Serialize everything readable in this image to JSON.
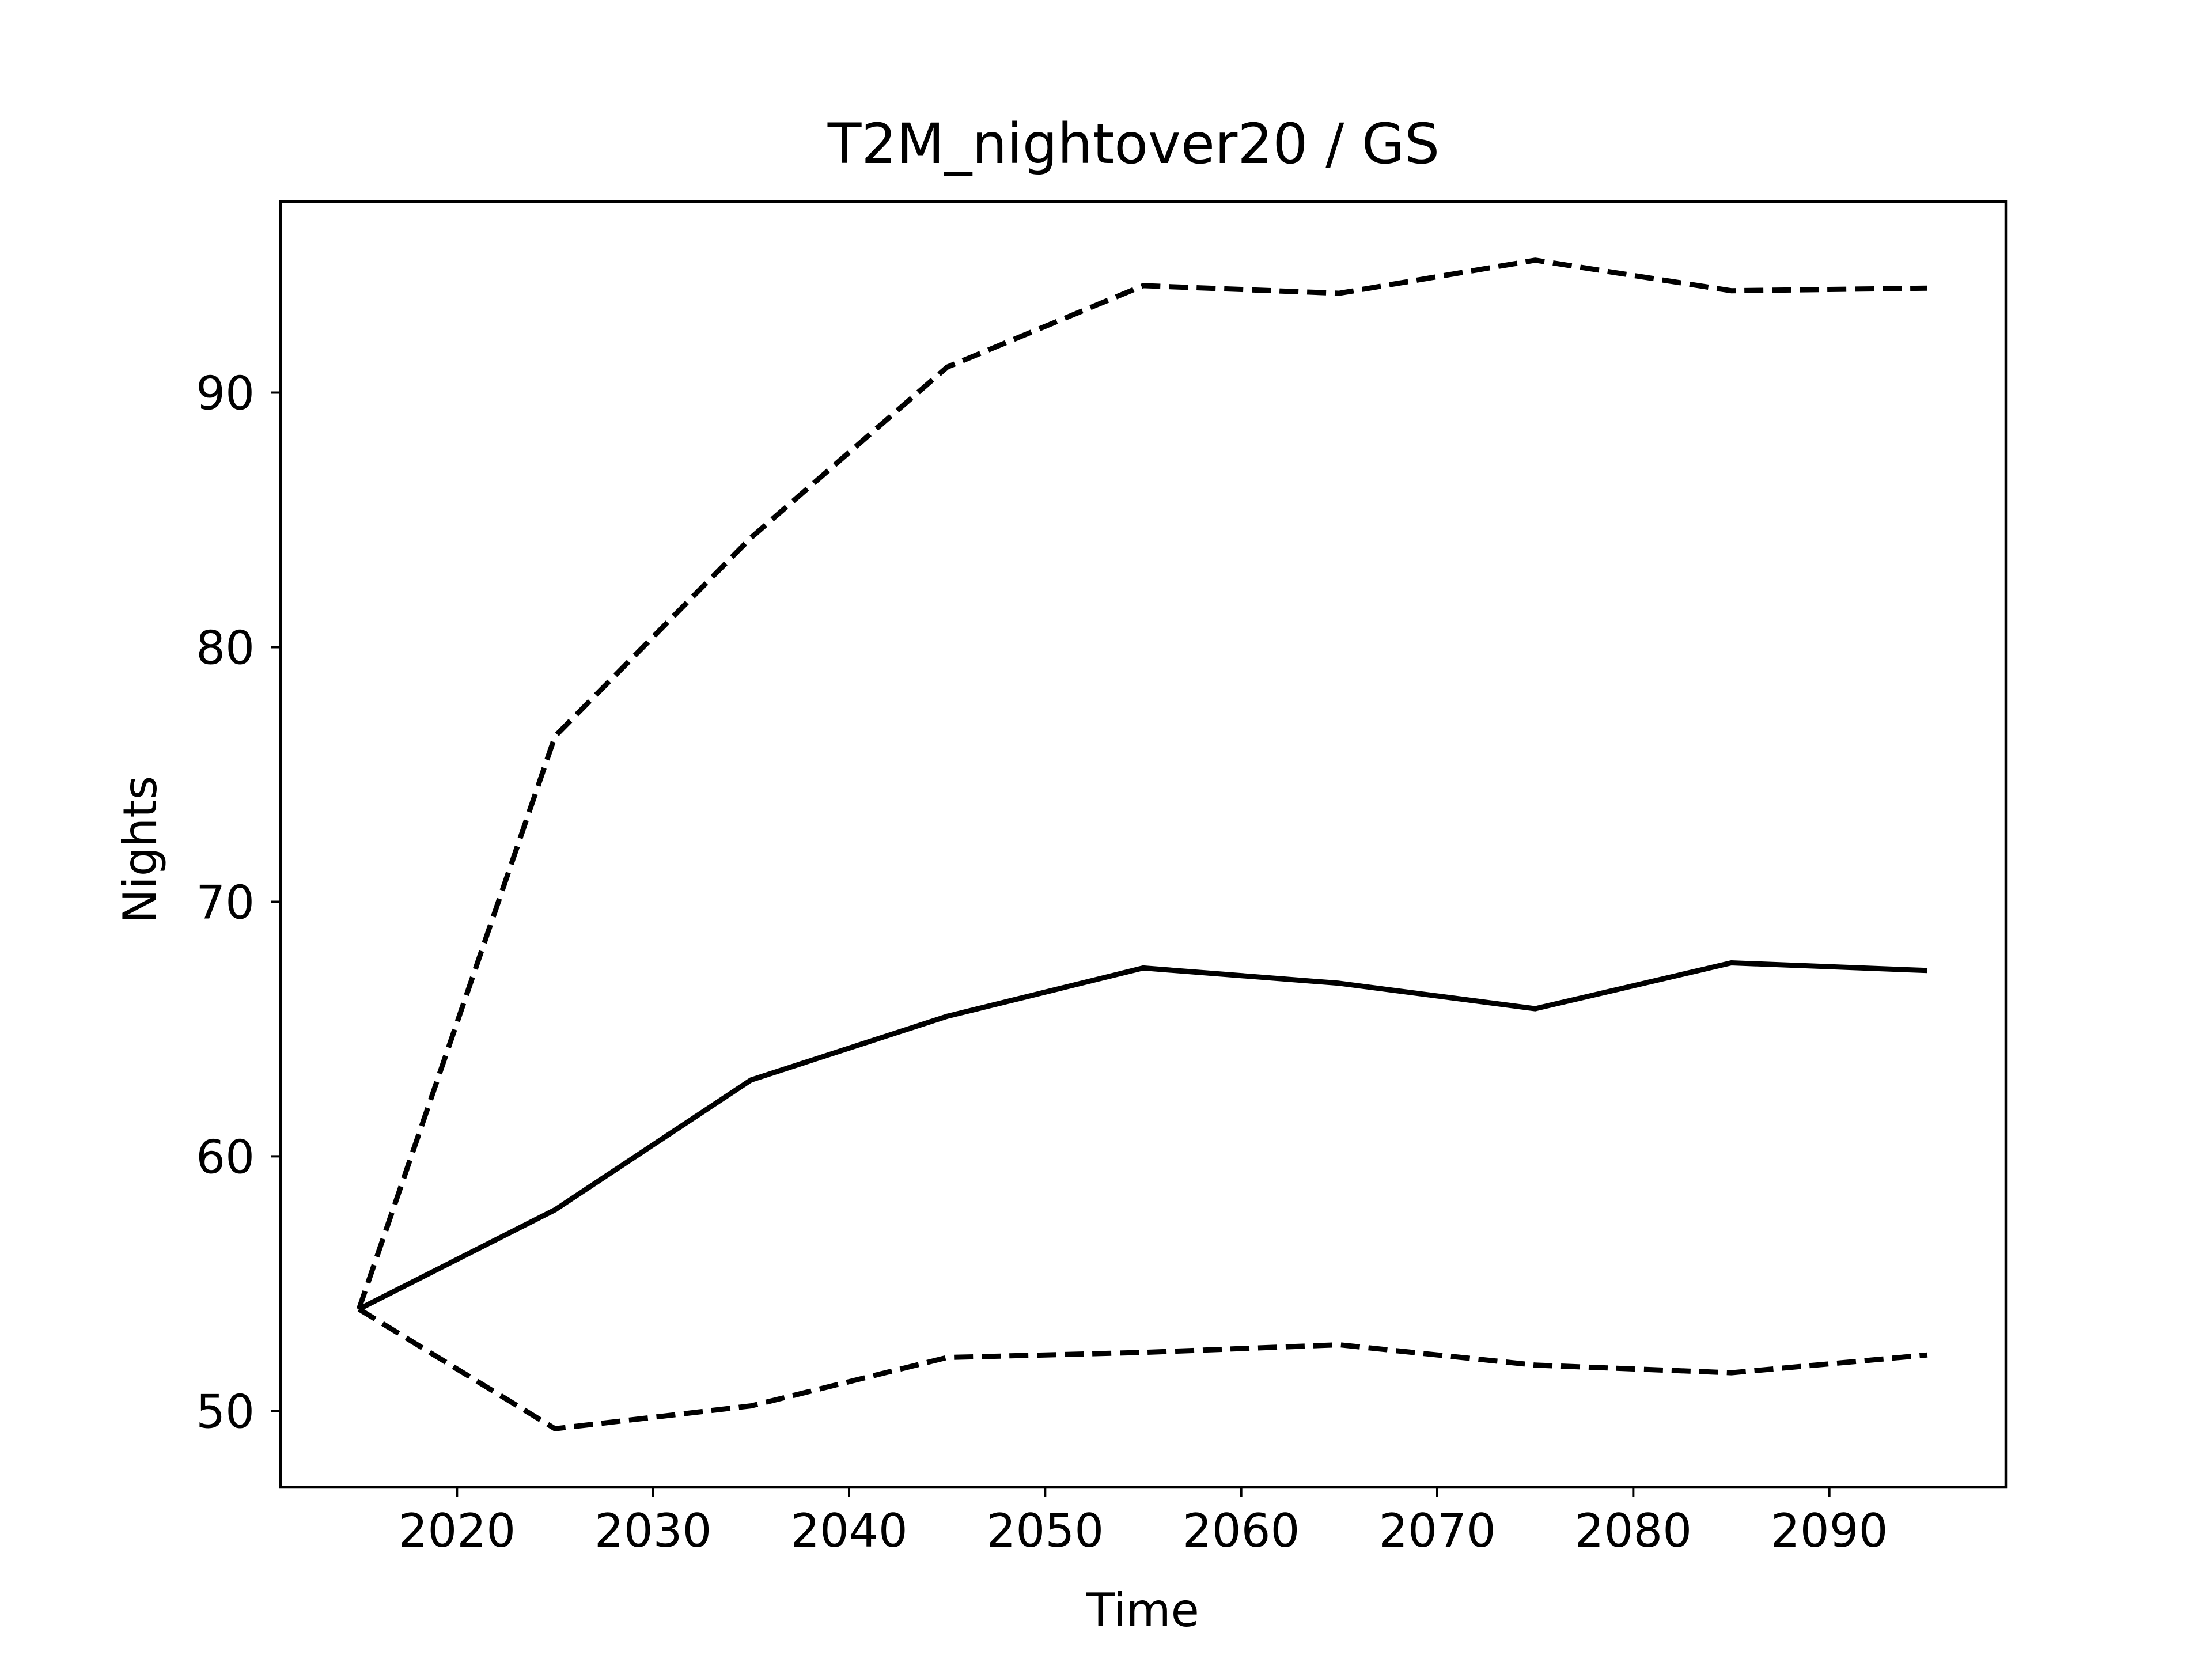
{
  "chart_data": {
    "type": "line",
    "title": "T2M_nightover20 / GS",
    "xlabel": "Time",
    "ylabel": "Nights",
    "xlim": [
      2011,
      2099
    ],
    "ylim": [
      47,
      97.5
    ],
    "x_ticks": [
      2020,
      2030,
      2040,
      2050,
      2060,
      2070,
      2080,
      2090
    ],
    "y_ticks": [
      50,
      60,
      70,
      80,
      90
    ],
    "grid": false,
    "legend": "none",
    "x": [
      2015,
      2025,
      2035,
      2045,
      2055,
      2065,
      2075,
      2085,
      2095
    ],
    "series": [
      {
        "style": "solid",
        "color": "#000000",
        "values": [
          54.0,
          57.9,
          63.0,
          65.5,
          67.4,
          66.8,
          65.8,
          67.6,
          67.3
        ]
      },
      {
        "style": "dashed",
        "color": "#000000",
        "values": [
          54.0,
          76.5,
          84.3,
          91.0,
          94.2,
          93.9,
          95.2,
          94.0,
          94.1
        ]
      },
      {
        "style": "dashed",
        "color": "#000000",
        "values": [
          54.0,
          49.3,
          50.2,
          52.1,
          52.3,
          52.6,
          51.8,
          51.5,
          52.2
        ]
      }
    ]
  }
}
